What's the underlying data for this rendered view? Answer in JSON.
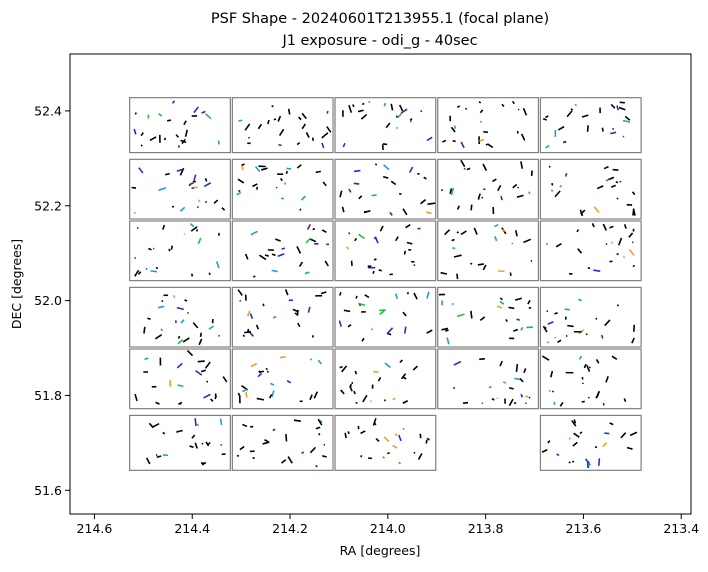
{
  "chart_data": {
    "type": "scatter",
    "title": "PSF Shape - 20240601T213955.1 (focal plane)",
    "subtitle": "J1 exposure - odi_g - 40sec",
    "xlabel": "RA [degrees]",
    "ylabel": "DEC [degrees]",
    "xlim": [
      214.65,
      213.38
    ],
    "ylim": [
      51.55,
      52.52
    ],
    "x_inverted": true,
    "x_ticks": [
      214.6,
      214.4,
      214.2,
      214.0,
      213.8,
      213.6,
      213.4
    ],
    "x_tick_labels": [
      "214.6",
      "214.4",
      "214.2",
      "214.0",
      "213.8",
      "213.6",
      "213.4"
    ],
    "y_ticks": [
      51.6,
      51.8,
      52.0,
      52.2,
      52.4
    ],
    "y_tick_labels": [
      "51.6",
      "51.8",
      "52.0",
      "52.2",
      "52.4"
    ],
    "grid": false,
    "legend": "none",
    "chip_edge_color": "#808080",
    "whisker_colors": [
      "#000000",
      "#1aa3c8",
      "#5a1a9a",
      "#1fbf3f",
      "#1f2fd0",
      "#f0a020"
    ],
    "chips": [
      {
        "ra": [
          214.53,
          214.32
        ],
        "dec": [
          52.31,
          52.43
        ]
      },
      {
        "ra": [
          214.32,
          214.11
        ],
        "dec": [
          52.31,
          52.43
        ]
      },
      {
        "ra": [
          214.11,
          213.9
        ],
        "dec": [
          52.31,
          52.43
        ]
      },
      {
        "ra": [
          213.9,
          213.69
        ],
        "dec": [
          52.31,
          52.43
        ]
      },
      {
        "ra": [
          213.69,
          213.48
        ],
        "dec": [
          52.31,
          52.43
        ]
      },
      {
        "ra": [
          214.53,
          214.32
        ],
        "dec": [
          52.17,
          52.3
        ]
      },
      {
        "ra": [
          214.32,
          214.11
        ],
        "dec": [
          52.17,
          52.3
        ]
      },
      {
        "ra": [
          214.11,
          213.9
        ],
        "dec": [
          52.17,
          52.3
        ]
      },
      {
        "ra": [
          213.9,
          213.69
        ],
        "dec": [
          52.17,
          52.3
        ]
      },
      {
        "ra": [
          213.69,
          213.48
        ],
        "dec": [
          52.17,
          52.3
        ]
      },
      {
        "ra": [
          214.53,
          214.32
        ],
        "dec": [
          52.04,
          52.17
        ]
      },
      {
        "ra": [
          214.32,
          214.11
        ],
        "dec": [
          52.04,
          52.17
        ]
      },
      {
        "ra": [
          214.11,
          213.9
        ],
        "dec": [
          52.04,
          52.17
        ]
      },
      {
        "ra": [
          213.9,
          213.69
        ],
        "dec": [
          52.04,
          52.17
        ]
      },
      {
        "ra": [
          213.69,
          213.48
        ],
        "dec": [
          52.04,
          52.17
        ]
      },
      {
        "ra": [
          214.53,
          214.32
        ],
        "dec": [
          51.9,
          52.03
        ]
      },
      {
        "ra": [
          214.32,
          214.11
        ],
        "dec": [
          51.9,
          52.03
        ]
      },
      {
        "ra": [
          214.11,
          213.9
        ],
        "dec": [
          51.9,
          52.03
        ]
      },
      {
        "ra": [
          213.9,
          213.69
        ],
        "dec": [
          51.9,
          52.03
        ]
      },
      {
        "ra": [
          213.69,
          213.48
        ],
        "dec": [
          51.9,
          52.03
        ]
      },
      {
        "ra": [
          214.53,
          214.32
        ],
        "dec": [
          51.77,
          51.9
        ]
      },
      {
        "ra": [
          214.32,
          214.11
        ],
        "dec": [
          51.77,
          51.9
        ]
      },
      {
        "ra": [
          214.11,
          213.9
        ],
        "dec": [
          51.77,
          51.9
        ]
      },
      {
        "ra": [
          213.9,
          213.69
        ],
        "dec": [
          51.77,
          51.9
        ]
      },
      {
        "ra": [
          213.69,
          213.48
        ],
        "dec": [
          51.77,
          51.9
        ]
      },
      {
        "ra": [
          214.53,
          214.32
        ],
        "dec": [
          51.64,
          51.76
        ]
      },
      {
        "ra": [
          214.32,
          214.11
        ],
        "dec": [
          51.64,
          51.76
        ]
      },
      {
        "ra": [
          214.11,
          213.9
        ],
        "dec": [
          51.64,
          51.76
        ]
      },
      {
        "ra": [
          213.69,
          213.48
        ],
        "dec": [
          51.64,
          51.76
        ]
      }
    ]
  }
}
